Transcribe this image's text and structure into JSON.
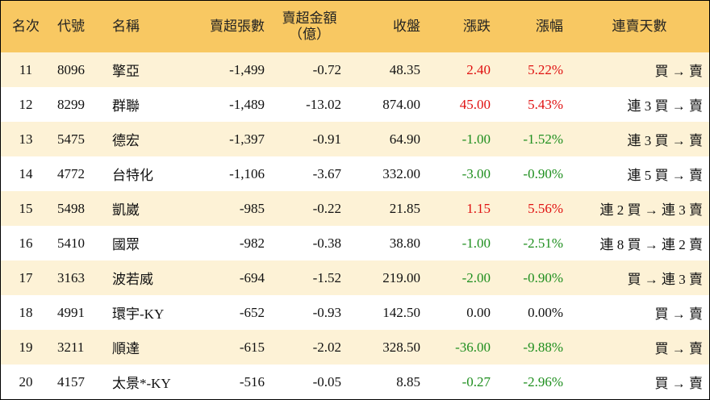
{
  "table": {
    "header": [
      "名次",
      "代號",
      "名稱",
      "賣超張數",
      [
        "賣超金額",
        "（億）"
      ],
      "收盤",
      "漲跌",
      "漲幅",
      "連賣天數"
    ],
    "rows": [
      [
        "11",
        "8096",
        "擎亞",
        "-1,499",
        "-0.72",
        "48.35",
        "2.40",
        "5.22%",
        "買 → 賣"
      ],
      [
        "12",
        "8299",
        "群聯",
        "-1,489",
        "-13.02",
        "874.00",
        "45.00",
        "5.43%",
        "連 3 買 → 賣"
      ],
      [
        "13",
        "5475",
        "德宏",
        "-1,397",
        "-0.91",
        "64.90",
        "-1.00",
        "-1.52%",
        "連 3 買 → 賣"
      ],
      [
        "14",
        "4772",
        "台特化",
        "-1,106",
        "-3.67",
        "332.00",
        "-3.00",
        "-0.90%",
        "連 5 買 → 賣"
      ],
      [
        "15",
        "5498",
        "凱崴",
        "-985",
        "-0.22",
        "21.85",
        "1.15",
        "5.56%",
        "連 2 買 → 連 3 賣"
      ],
      [
        "16",
        "5410",
        "國眾",
        "-982",
        "-0.38",
        "38.80",
        "-1.00",
        "-2.51%",
        "連 8 買 → 連 2 賣"
      ],
      [
        "17",
        "3163",
        "波若威",
        "-694",
        "-1.52",
        "219.00",
        "-2.00",
        "-0.90%",
        "買 → 連 3 賣"
      ],
      [
        "18",
        "4991",
        "環宇-KY",
        "-652",
        "-0.93",
        "142.50",
        "0.00",
        "0.00%",
        "買 → 賣"
      ],
      [
        "19",
        "3211",
        "順達",
        "-615",
        "-2.02",
        "328.50",
        "-36.00",
        "-9.88%",
        "買 → 賣"
      ],
      [
        "20",
        "4157",
        "太景*-KY",
        "-516",
        "-0.05",
        "8.85",
        "-0.27",
        "-2.96%",
        "買 → 賣"
      ]
    ]
  }
}
